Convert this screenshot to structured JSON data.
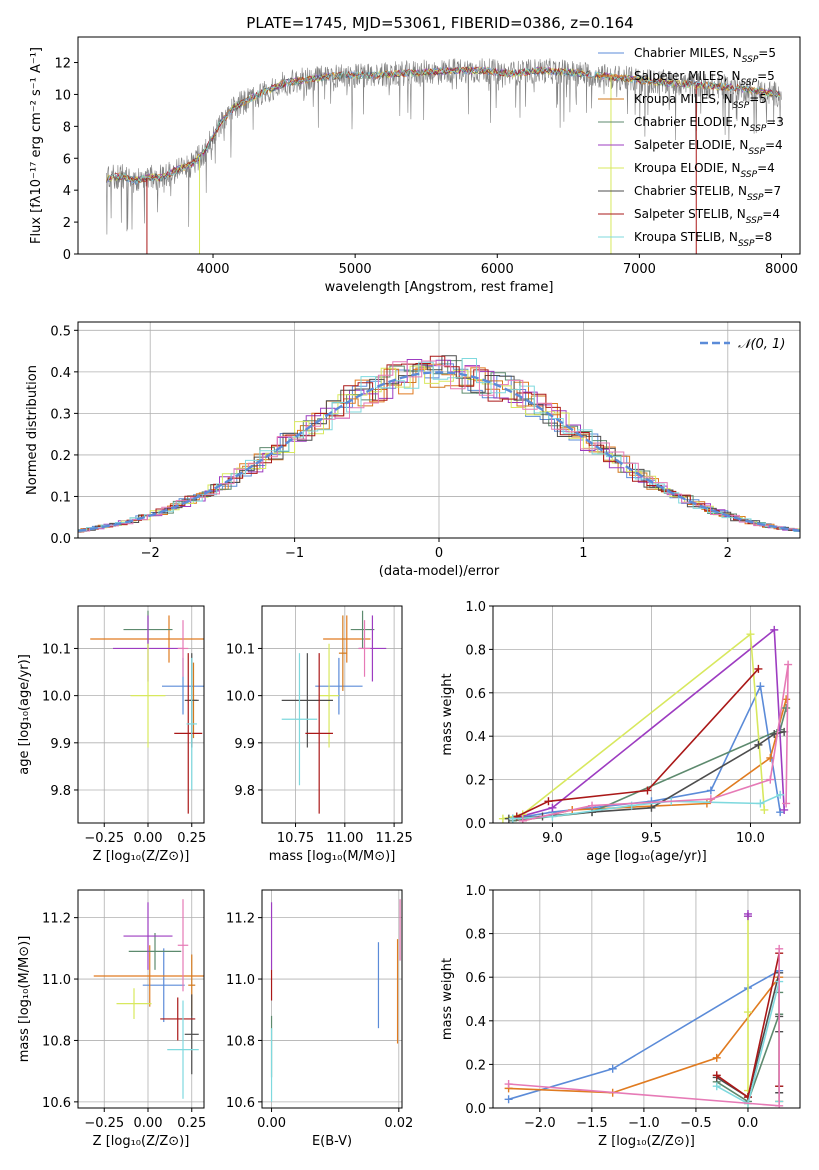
{
  "colors": {
    "Chabrier MILES": "#5b8bd8",
    "Salpeter MILES": "#e07b20",
    "Kroupa MILES": "#d3791e",
    "Chabrier ELODIE": "#5d8a6e",
    "Salpeter ELODIE": "#9d3cc1",
    "Kroupa ELODIE": "#d8e85e",
    "Chabrier STELIB": "#4d4d4d",
    "Salpeter STELIB": "#aa1818",
    "Kroupa STELIB": "#7fd9de",
    "pink": "#e67ab6",
    "data": "#808080"
  },
  "chart_data": [
    {
      "type": "line",
      "title": "PLATE=1745, MJD=53061, FIBERID=0386, z=0.164",
      "xlabel": "wavelength [Angstrom, rest frame]",
      "ylabel": "Flux [fλ10⁻¹⁷ erg cm⁻² s⁻¹ A⁻¹]",
      "xlim": [
        3050,
        8130
      ],
      "ylim": [
        0,
        13.6
      ],
      "xticks": [
        4000,
        5000,
        6000,
        7000,
        8000
      ],
      "yticks": [
        0,
        2,
        4,
        6,
        8,
        10,
        12
      ],
      "legend_position": "top-right",
      "series": [
        {
          "name": "Chabrier MILES, N_SSP=5"
        },
        {
          "name": "Salpeter MILES, N_SSP=5"
        },
        {
          "name": "Kroupa MILES, N_SSP=5"
        },
        {
          "name": "Chabrier ELODIE, N_SSP=3"
        },
        {
          "name": "Salpeter ELODIE, N_SSP=4"
        },
        {
          "name": "Kroupa ELODIE, N_SSP=4"
        },
        {
          "name": "Chabrier STELIB, N_SSP=7"
        },
        {
          "name": "Salpeter STELIB, N_SSP=4"
        },
        {
          "name": "Kroupa STELIB, N_SSP=8"
        }
      ],
      "continuum": {
        "x": [
          3250,
          3350,
          3450,
          3550,
          3650,
          3750,
          3850,
          3950,
          4050,
          4150,
          4300,
          4500,
          4700,
          4900,
          5100,
          5300,
          5500,
          5700,
          5900,
          6100,
          6300,
          6500,
          6700,
          6900,
          7100,
          7400,
          7700,
          7900,
          8000
        ],
        "y": [
          4.7,
          4.9,
          4.6,
          4.8,
          4.8,
          5.3,
          5.6,
          6.5,
          8.2,
          9.2,
          9.9,
          10.7,
          11.0,
          11.2,
          11.2,
          11.3,
          11.4,
          11.5,
          11.5,
          11.3,
          11.5,
          11.4,
          11.2,
          11.0,
          10.8,
          10.6,
          10.4,
          10.1,
          10.0
        ]
      },
      "edges": [
        {
          "color": "Salpeter STELIB",
          "x": 3535
        },
        {
          "color": "Kroupa ELODIE",
          "x": 3905
        },
        {
          "color": "Kroupa ELODIE",
          "x": 6800
        },
        {
          "color": "Salpeter STELIB",
          "x": 7400
        }
      ]
    },
    {
      "type": "histogram",
      "xlabel": "(data-model)/error",
      "ylabel": "Normed distribution",
      "xlim": [
        -2.5,
        2.5
      ],
      "ylim": [
        0,
        0.52
      ],
      "xticks": [
        -2,
        -1,
        0,
        1,
        2
      ],
      "yticks": [
        0.0,
        0.1,
        0.2,
        0.3,
        0.4,
        0.5
      ],
      "reference": {
        "name": "𝒩(0, 1)",
        "mean": 0,
        "sigma": 1
      },
      "legend_position": "top-right"
    },
    {
      "type": "scatter",
      "xlabel": "Z [log₁₀(Z/Z⊙)]",
      "ylabel": "age  [log₁₀(age/yr)]",
      "xlim": [
        -0.4,
        0.32
      ],
      "ylim": [
        9.73,
        10.19
      ],
      "xticks": [
        -0.25,
        0.0,
        0.25
      ],
      "xtick_labels": [
        "−0.25",
        "0.00",
        "0.25"
      ],
      "yticks": [
        9.8,
        9.9,
        10.0,
        10.1
      ],
      "points": [
        {
          "c": "Chabrier MILES",
          "x": 0.2,
          "y": 10.02,
          "xe": 0.12,
          "ye": 0.06
        },
        {
          "c": "Salpeter MILES",
          "x": 0.12,
          "y": 10.12,
          "xe": 0.45,
          "ye": 0.05
        },
        {
          "c": "Kroupa MILES",
          "x": 0.26,
          "y": 9.99,
          "xe": 0.02,
          "ye": 0.08
        },
        {
          "c": "Chabrier ELODIE",
          "x": 0.0,
          "y": 10.14,
          "xe": 0.14,
          "ye": 0.04
        },
        {
          "c": "Salpeter ELODIE",
          "x": 0.0,
          "y": 10.1,
          "xe": 0.2,
          "ye": 0.07
        },
        {
          "c": "Kroupa ELODIE",
          "x": 0.0,
          "y": 10.0,
          "xe": 0.1,
          "ye": 0.11
        },
        {
          "c": "Chabrier STELIB",
          "x": 0.25,
          "y": 9.99,
          "xe": 0.04,
          "ye": 0.1
        },
        {
          "c": "Salpeter STELIB",
          "x": 0.23,
          "y": 9.92,
          "xe": 0.08,
          "ye": 0.17
        },
        {
          "c": "Kroupa STELIB",
          "x": 0.25,
          "y": 9.94,
          "xe": 0.03,
          "ye": 0.14
        },
        {
          "c": "pink",
          "x": 0.2,
          "y": 10.1,
          "xe": 0.03,
          "ye": 0.06
        }
      ]
    },
    {
      "type": "scatter",
      "xlabel": "mass [log₁₀(M/M⊙)]",
      "xlim": [
        10.58,
        11.29
      ],
      "ylim": [
        9.73,
        10.19
      ],
      "xticks": [
        10.75,
        11.0,
        11.25
      ],
      "xtick_labels": [
        "10.75",
        "11.00",
        "11.25"
      ],
      "yticks": [
        9.8,
        9.9,
        10.0,
        10.1
      ],
      "points": [
        {
          "c": "Chabrier MILES",
          "x": 10.97,
          "y": 10.02,
          "xe": 0.12,
          "ye": 0.06
        },
        {
          "c": "Salpeter MILES",
          "x": 11.01,
          "y": 10.12,
          "xe": 0.12,
          "ye": 0.05
        },
        {
          "c": "Kroupa MILES",
          "x": 10.99,
          "y": 10.09,
          "xe": 0.02,
          "ye": 0.08
        },
        {
          "c": "Chabrier ELODIE",
          "x": 11.09,
          "y": 10.14,
          "xe": 0.06,
          "ye": 0.04
        },
        {
          "c": "Salpeter ELODIE",
          "x": 11.14,
          "y": 10.1,
          "xe": 0.07,
          "ye": 0.07
        },
        {
          "c": "Kroupa ELODIE",
          "x": 10.92,
          "y": 10.0,
          "xe": 0.05,
          "ye": 0.11
        },
        {
          "c": "Chabrier STELIB",
          "x": 10.81,
          "y": 9.99,
          "xe": 0.13,
          "ye": 0.1
        },
        {
          "c": "Salpeter STELIB",
          "x": 10.87,
          "y": 9.92,
          "xe": 0.07,
          "ye": 0.17
        },
        {
          "c": "Kroupa STELIB",
          "x": 10.77,
          "y": 9.95,
          "xe": 0.09,
          "ye": 0.14
        },
        {
          "c": "pink",
          "x": 11.1,
          "y": 10.1,
          "xe": 0.03,
          "ye": 0.06
        }
      ]
    },
    {
      "type": "line",
      "xlabel": "age  [log₁₀(age/yr)]",
      "ylabel": "mass weight",
      "xlim": [
        8.7,
        10.25
      ],
      "ylim": [
        0,
        1.0
      ],
      "xticks": [
        9.0,
        9.5,
        10.0
      ],
      "yticks": [
        0.0,
        0.2,
        0.4,
        0.6,
        0.8,
        1.0
      ],
      "series": [
        {
          "c": "Chabrier MILES",
          "x": [
            8.8,
            9.0,
            9.5,
            9.8,
            10.05,
            10.15
          ],
          "y": [
            0.02,
            0.05,
            0.1,
            0.15,
            0.63,
            0.05
          ]
        },
        {
          "c": "Salpeter MILES",
          "x": [
            8.85,
            9.1,
            9.78,
            10.1,
            10.18
          ],
          "y": [
            0.01,
            0.06,
            0.09,
            0.3,
            0.57
          ]
        },
        {
          "c": "Chabrier ELODIE",
          "x": [
            8.8,
            9.2,
            10.15,
            10.18
          ],
          "y": [
            0.01,
            0.05,
            0.43,
            0.53
          ]
        },
        {
          "c": "Salpeter ELODIE",
          "x": [
            8.8,
            9.0,
            10.12,
            10.17
          ],
          "y": [
            0.02,
            0.07,
            0.89,
            0.06
          ]
        },
        {
          "c": "Kroupa ELODIE",
          "x": [
            8.75,
            8.85,
            10.0,
            10.07
          ],
          "y": [
            0.02,
            0.04,
            0.87,
            0.06
          ]
        },
        {
          "c": "Chabrier STELIB",
          "x": [
            8.78,
            8.95,
            9.2,
            9.5,
            10.04,
            10.12,
            10.17
          ],
          "y": [
            0.02,
            0.03,
            0.05,
            0.07,
            0.36,
            0.41,
            0.42
          ]
        },
        {
          "c": "Salpeter STELIB",
          "x": [
            8.82,
            8.98,
            9.48,
            10.04
          ],
          "y": [
            0.03,
            0.1,
            0.15,
            0.71
          ]
        },
        {
          "c": "Kroupa STELIB",
          "x": [
            8.8,
            9.0,
            9.4,
            9.6,
            10.05,
            10.15
          ],
          "y": [
            0.02,
            0.03,
            0.08,
            0.1,
            0.09,
            0.13
          ]
        },
        {
          "c": "pink",
          "x": [
            8.85,
            9.2,
            9.8,
            10.1,
            10.19,
            10.18
          ],
          "y": [
            0.01,
            0.08,
            0.11,
            0.2,
            0.73,
            0.09
          ]
        }
      ]
    },
    {
      "type": "scatter",
      "xlabel": "Z [log₁₀(Z/Z⊙)]",
      "ylabel": "mass [log₁₀(M/M⊙)]",
      "xlim": [
        -0.4,
        0.32
      ],
      "ylim": [
        10.58,
        11.29
      ],
      "xticks": [
        -0.25,
        0.0,
        0.25
      ],
      "xtick_labels": [
        "−0.25",
        "0.00",
        "0.25"
      ],
      "yticks": [
        10.6,
        10.8,
        11.0,
        11.2
      ],
      "points": [
        {
          "c": "Chabrier MILES",
          "x": 0.09,
          "y": 10.98,
          "xe": 0.12,
          "ye": 0.12
        },
        {
          "c": "Salpeter MILES",
          "x": 0.01,
          "y": 11.01,
          "xe": 0.32,
          "ye": 0.1
        },
        {
          "c": "Kroupa MILES",
          "x": 0.25,
          "y": 10.98,
          "xe": 0.02,
          "ye": 0.1
        },
        {
          "c": "Chabrier ELODIE",
          "x": 0.04,
          "y": 11.09,
          "xe": 0.15,
          "ye": 0.06
        },
        {
          "c": "Salpeter ELODIE",
          "x": 0.0,
          "y": 11.14,
          "xe": 0.14,
          "ye": 0.11
        },
        {
          "c": "Kroupa ELODIE",
          "x": -0.08,
          "y": 10.92,
          "xe": 0.1,
          "ye": 0.05
        },
        {
          "c": "Chabrier STELIB",
          "x": 0.25,
          "y": 10.82,
          "xe": 0.04,
          "ye": 0.13
        },
        {
          "c": "Salpeter STELIB",
          "x": 0.17,
          "y": 10.87,
          "xe": 0.1,
          "ye": 0.07
        },
        {
          "c": "Kroupa STELIB",
          "x": 0.2,
          "y": 10.77,
          "xe": 0.09,
          "ye": 0.16
        },
        {
          "c": "pink",
          "x": 0.2,
          "y": 11.11,
          "xe": 0.03,
          "ye": 0.15
        }
      ]
    },
    {
      "type": "scatter",
      "xlabel": "E(B-V)",
      "xlim": [
        -0.0015,
        0.0205
      ],
      "ylim": [
        10.58,
        11.29
      ],
      "xticks": [
        0.0,
        0.02
      ],
      "xtick_labels": [
        "0.00",
        "0.02"
      ],
      "yticks": [
        10.6,
        10.8,
        11.0,
        11.2
      ],
      "points": [
        {
          "c": "Salpeter ELODIE",
          "x": 0.0,
          "y": 11.14,
          "xe": 0,
          "ye": 0.11
        },
        {
          "c": "Salpeter STELIB",
          "x": 0.0,
          "y": 10.98,
          "xe": 0,
          "ye": 0.05
        },
        {
          "c": "Chabrier ELODIE",
          "x": 0.0,
          "y": 10.78,
          "xe": 0,
          "ye": 0.1
        },
        {
          "c": "Kroupa STELIB",
          "x": 0.0,
          "y": 10.72,
          "xe": 0,
          "ye": 0.12
        },
        {
          "c": "Chabrier MILES",
          "x": 0.0168,
          "y": 10.98,
          "xe": 0,
          "ye": 0.14
        },
        {
          "c": "Salpeter MILES",
          "x": 0.0198,
          "y": 10.96,
          "xe": 0,
          "ye": 0.17
        },
        {
          "c": "pink",
          "x": 0.0202,
          "y": 11.16,
          "xe": 0,
          "ye": 0.1
        }
      ]
    },
    {
      "type": "line",
      "xlabel": "Z [log₁₀(Z/Z⊙)]",
      "ylabel": "mass weight",
      "xlim": [
        -2.45,
        0.5
      ],
      "ylim": [
        0,
        1.0
      ],
      "xticks": [
        -2.0,
        -1.5,
        -1.0,
        -0.5,
        0.0
      ],
      "xtick_labels": [
        "−2.0",
        "−1.5",
        "−1.0",
        "−0.5",
        "0.0"
      ],
      "yticks": [
        0.0,
        0.2,
        0.4,
        0.6,
        0.8,
        1.0
      ],
      "series": [
        {
          "c": "Chabrier MILES",
          "x": [
            -2.3,
            -1.3,
            0.0,
            0.3
          ],
          "y": [
            0.04,
            0.18,
            0.55,
            0.63
          ]
        },
        {
          "c": "Salpeter MILES",
          "x": [
            -2.3,
            -1.3,
            -0.3,
            0.3,
            0.3
          ],
          "y": [
            0.09,
            0.07,
            0.23,
            0.6,
            0.03
          ]
        },
        {
          "c": "Kroupa ELODIE",
          "x": [
            0.0,
            0.0,
            0.0,
            0.0
          ],
          "y": [
            0.02,
            0.88,
            0.44,
            0.08
          ]
        },
        {
          "c": "Salpeter ELODIE",
          "x": [
            0.0,
            0.0
          ],
          "y": [
            0.88,
            0.89
          ]
        },
        {
          "c": "Chabrier ELODIE",
          "x": [
            -0.3,
            0.0,
            0.3,
            0.3
          ],
          "y": [
            0.12,
            0.03,
            0.43,
            0.53
          ]
        },
        {
          "c": "Chabrier STELIB",
          "x": [
            -0.3,
            0.0,
            0.3,
            0.3,
            0.3,
            0.3,
            0.3
          ],
          "y": [
            0.14,
            0.05,
            0.62,
            0.42,
            0.35,
            0.1,
            0.07
          ]
        },
        {
          "c": "Salpeter STELIB",
          "x": [
            -0.3,
            0.0,
            0.3,
            0.3
          ],
          "y": [
            0.15,
            0.05,
            0.71,
            0.1
          ]
        },
        {
          "c": "Kroupa STELIB",
          "x": [
            -0.3,
            0.0,
            0.3,
            0.3
          ],
          "y": [
            0.1,
            0.02,
            0.58,
            0.03
          ]
        },
        {
          "c": "pink",
          "x": [
            -2.3,
            0.3,
            0.3
          ],
          "y": [
            0.11,
            0.01,
            0.73
          ]
        }
      ]
    }
  ]
}
